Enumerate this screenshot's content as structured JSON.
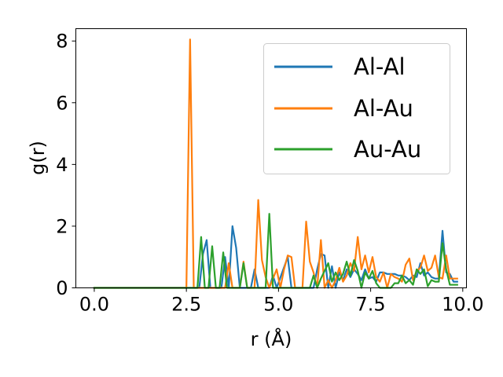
{
  "chart_data": {
    "type": "line",
    "title": "",
    "xlabel": "r (Å)",
    "ylabel": "g(r)",
    "xlim": [
      -0.5,
      10.1
    ],
    "ylim": [
      0,
      8.4
    ],
    "xticks": [
      "0.0",
      "2.5",
      "5.0",
      "7.5",
      "10.0"
    ],
    "xtick_values": [
      0,
      2.5,
      5.0,
      7.5,
      10.0
    ],
    "yticks": [
      "0",
      "2",
      "4",
      "6",
      "8"
    ],
    "ytick_values": [
      0,
      2,
      4,
      6,
      8
    ],
    "grid": false,
    "legend_position": "top-right",
    "series": [
      {
        "name": "Al-Al",
        "color": "#1f77b4",
        "points": [
          [
            0,
            0
          ],
          [
            2.85,
            0
          ],
          [
            2.95,
            1.1
          ],
          [
            3.05,
            1.55
          ],
          [
            3.15,
            0
          ],
          [
            3.45,
            0
          ],
          [
            3.55,
            1.0
          ],
          [
            3.65,
            0
          ],
          [
            3.75,
            2.0
          ],
          [
            3.85,
            1.3
          ],
          [
            3.95,
            0
          ],
          [
            4.25,
            0
          ],
          [
            4.35,
            0.6
          ],
          [
            4.45,
            0
          ],
          [
            4.75,
            0
          ],
          [
            4.85,
            0.4
          ],
          [
            4.95,
            0
          ],
          [
            5.25,
            1.0
          ],
          [
            5.35,
            0
          ],
          [
            5.95,
            0
          ],
          [
            6.05,
            0.6
          ],
          [
            6.15,
            1.1
          ],
          [
            6.25,
            1.05
          ],
          [
            6.35,
            0
          ],
          [
            6.45,
            0.7
          ],
          [
            6.55,
            0
          ],
          [
            6.65,
            0.5
          ],
          [
            6.75,
            0.25
          ],
          [
            6.85,
            0.6
          ],
          [
            6.95,
            0.35
          ],
          [
            7.05,
            0.6
          ],
          [
            7.15,
            0.45
          ],
          [
            7.25,
            0.25
          ],
          [
            7.35,
            0.6
          ],
          [
            7.45,
            0.3
          ],
          [
            7.55,
            0.35
          ],
          [
            7.65,
            0.2
          ],
          [
            7.75,
            0.5
          ],
          [
            7.85,
            0.5
          ],
          [
            7.95,
            0.45
          ],
          [
            8.05,
            0.45
          ],
          [
            8.15,
            0.45
          ],
          [
            8.25,
            0.4
          ],
          [
            8.35,
            0.4
          ],
          [
            8.45,
            0.35
          ],
          [
            8.55,
            0.25
          ],
          [
            8.65,
            0.4
          ],
          [
            8.75,
            0.35
          ],
          [
            8.85,
            0.8
          ],
          [
            8.95,
            0.4
          ],
          [
            9.05,
            0.5
          ],
          [
            9.15,
            0.35
          ],
          [
            9.25,
            0.3
          ],
          [
            9.35,
            0.3
          ],
          [
            9.45,
            1.85
          ],
          [
            9.55,
            0.5
          ],
          [
            9.65,
            0.45
          ],
          [
            9.75,
            0.2
          ],
          [
            9.85,
            0.2
          ]
        ]
      },
      {
        "name": "Al-Au",
        "color": "#ff7f0e",
        "points": [
          [
            0,
            0
          ],
          [
            2.5,
            0
          ],
          [
            2.6,
            8.05
          ],
          [
            2.7,
            0
          ],
          [
            3.55,
            0
          ],
          [
            3.65,
            0.8
          ],
          [
            3.75,
            0
          ],
          [
            3.95,
            0
          ],
          [
            4.05,
            0.85
          ],
          [
            4.15,
            0
          ],
          [
            4.35,
            0
          ],
          [
            4.45,
            2.85
          ],
          [
            4.55,
            0.9
          ],
          [
            4.65,
            0.35
          ],
          [
            4.75,
            0
          ],
          [
            4.95,
            0.6
          ],
          [
            5.05,
            0
          ],
          [
            5.15,
            0.6
          ],
          [
            5.25,
            1.05
          ],
          [
            5.35,
            1.0
          ],
          [
            5.45,
            0
          ],
          [
            5.65,
            0
          ],
          [
            5.75,
            2.15
          ],
          [
            5.85,
            0.85
          ],
          [
            5.95,
            0.5
          ],
          [
            6.05,
            0
          ],
          [
            6.15,
            1.55
          ],
          [
            6.25,
            0
          ],
          [
            6.35,
            0.25
          ],
          [
            6.45,
            0
          ],
          [
            6.55,
            0.25
          ],
          [
            6.65,
            0.65
          ],
          [
            6.75,
            0.2
          ],
          [
            6.85,
            0.4
          ],
          [
            6.95,
            0.8
          ],
          [
            7.05,
            0.55
          ],
          [
            7.15,
            1.65
          ],
          [
            7.25,
            0.6
          ],
          [
            7.35,
            1.05
          ],
          [
            7.45,
            0.5
          ],
          [
            7.55,
            1.0
          ],
          [
            7.65,
            0.35
          ],
          [
            7.75,
            0.2
          ],
          [
            7.85,
            0.5
          ],
          [
            7.95,
            0
          ],
          [
            8.05,
            0.45
          ],
          [
            8.15,
            0.35
          ],
          [
            8.25,
            0.3
          ],
          [
            8.35,
            0.2
          ],
          [
            8.45,
            0.75
          ],
          [
            8.55,
            0.95
          ],
          [
            8.65,
            0.25
          ],
          [
            8.75,
            0.55
          ],
          [
            8.85,
            0.65
          ],
          [
            8.95,
            1.05
          ],
          [
            9.05,
            0.55
          ],
          [
            9.15,
            0.65
          ],
          [
            9.25,
            1.05
          ],
          [
            9.35,
            0.35
          ],
          [
            9.45,
            0.3
          ],
          [
            9.55,
            1.05
          ],
          [
            9.65,
            0.3
          ],
          [
            9.75,
            0.3
          ],
          [
            9.85,
            0.3
          ]
        ]
      },
      {
        "name": "Au-Au",
        "color": "#2ca02c",
        "points": [
          [
            0,
            0
          ],
          [
            2.8,
            0
          ],
          [
            2.9,
            1.65
          ],
          [
            3.0,
            0
          ],
          [
            3.1,
            0
          ],
          [
            3.2,
            1.35
          ],
          [
            3.3,
            0
          ],
          [
            3.4,
            0
          ],
          [
            3.5,
            1.15
          ],
          [
            3.6,
            0
          ],
          [
            3.95,
            0
          ],
          [
            4.05,
            0.8
          ],
          [
            4.15,
            0
          ],
          [
            4.65,
            0
          ],
          [
            4.75,
            2.4
          ],
          [
            4.85,
            0
          ],
          [
            5.85,
            0
          ],
          [
            5.95,
            0.4
          ],
          [
            6.05,
            0
          ],
          [
            6.15,
            0.3
          ],
          [
            6.25,
            0.55
          ],
          [
            6.35,
            0.8
          ],
          [
            6.45,
            0.2
          ],
          [
            6.55,
            0.5
          ],
          [
            6.65,
            0.25
          ],
          [
            6.75,
            0.45
          ],
          [
            6.85,
            0.85
          ],
          [
            6.95,
            0.4
          ],
          [
            7.05,
            0.9
          ],
          [
            7.15,
            0.55
          ],
          [
            7.25,
            0
          ],
          [
            7.35,
            0.5
          ],
          [
            7.45,
            0.3
          ],
          [
            7.55,
            0.55
          ],
          [
            7.65,
            0.15
          ],
          [
            7.75,
            0
          ],
          [
            7.85,
            0
          ],
          [
            8.05,
            0
          ],
          [
            8.15,
            0.15
          ],
          [
            8.25,
            0.15
          ],
          [
            8.35,
            0.4
          ],
          [
            8.45,
            0.15
          ],
          [
            8.55,
            0.25
          ],
          [
            8.65,
            0.1
          ],
          [
            8.75,
            0.6
          ],
          [
            8.85,
            0.45
          ],
          [
            8.95,
            0.6
          ],
          [
            9.05,
            0.05
          ],
          [
            9.15,
            0.25
          ],
          [
            9.25,
            0.2
          ],
          [
            9.35,
            0.2
          ],
          [
            9.45,
            1.45
          ],
          [
            9.55,
            0.6
          ],
          [
            9.65,
            0.1
          ],
          [
            9.75,
            0.1
          ],
          [
            9.85,
            0.1
          ]
        ]
      }
    ]
  }
}
